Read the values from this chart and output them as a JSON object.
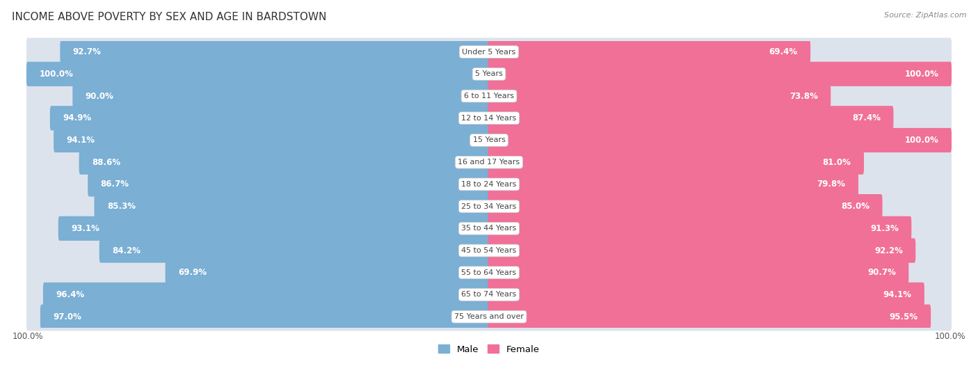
{
  "title": "INCOME ABOVE POVERTY BY SEX AND AGE IN BARDSTOWN",
  "source": "Source: ZipAtlas.com",
  "categories": [
    "Under 5 Years",
    "5 Years",
    "6 to 11 Years",
    "12 to 14 Years",
    "15 Years",
    "16 and 17 Years",
    "18 to 24 Years",
    "25 to 34 Years",
    "35 to 44 Years",
    "45 to 54 Years",
    "55 to 64 Years",
    "65 to 74 Years",
    "75 Years and over"
  ],
  "male_values": [
    92.7,
    100.0,
    90.0,
    94.9,
    94.1,
    88.6,
    86.7,
    85.3,
    93.1,
    84.2,
    69.9,
    96.4,
    97.0
  ],
  "female_values": [
    69.4,
    100.0,
    73.8,
    87.4,
    100.0,
    81.0,
    79.8,
    85.0,
    91.3,
    92.2,
    90.7,
    94.1,
    95.5
  ],
  "male_color": "#7bafd4",
  "female_color": "#f07098",
  "male_label": "Male",
  "female_label": "Female",
  "track_color_odd": "#e8e8ee",
  "track_color_even": "#f0f0f5",
  "row_bg_odd": "#ffffff",
  "row_bg_even": "#f2f2f7",
  "max_value": 100.0,
  "bg_color": "#ffffff",
  "label_fontsize": 8.0,
  "title_fontsize": 11,
  "source_fontsize": 8,
  "value_fontsize": 8.5
}
